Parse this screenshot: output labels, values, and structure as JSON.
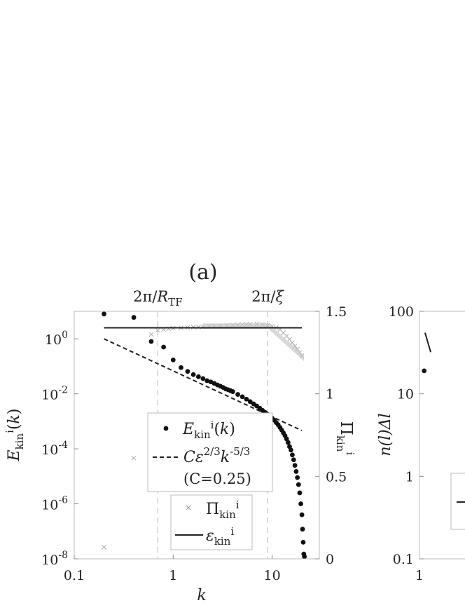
{
  "chart_data": [
    {
      "type": "scatter",
      "panel_label": "(a)",
      "xlabel": "k",
      "ylabel": "E_kin^i(k)",
      "ylabel_right": "Π_kin^i",
      "x_scale": "log",
      "y_scale": "log",
      "xlim": [
        0.1,
        30
      ],
      "ylim": [
        1e-08,
        10
      ],
      "ylim_right": [
        0,
        1.5
      ],
      "x_ticks": [
        {
          "value": 0.1,
          "label": "0.1"
        },
        {
          "value": 1,
          "label": "1"
        },
        {
          "value": 10,
          "label": "10"
        }
      ],
      "y_ticks": [
        {
          "value": 1,
          "base": "10",
          "exp": "0"
        },
        {
          "value": 0.01,
          "base": "10",
          "exp": "-2"
        },
        {
          "value": 0.0001,
          "base": "10",
          "exp": "-4"
        },
        {
          "value": 1e-06,
          "base": "10",
          "exp": "-6"
        },
        {
          "value": 1e-08,
          "base": "10",
          "exp": "-8"
        }
      ],
      "y_ticks_right": [
        {
          "value": 1.5,
          "label": "1.5"
        },
        {
          "value": 1,
          "label": "1"
        },
        {
          "value": 0.5,
          "label": "0.5"
        },
        {
          "value": 0,
          "label": "0"
        }
      ],
      "vertical_markers": [
        {
          "x": 0.7,
          "label": "2π/R_TF"
        },
        {
          "x": 9,
          "label": "2π/ξ"
        }
      ],
      "series": [
        {
          "name": "E_kin^i(k)",
          "style": "dots",
          "axis": "left",
          "x": [
            0.2,
            0.4,
            0.6,
            0.8,
            1.0,
            1.2,
            1.4,
            1.6,
            1.8,
            2.0,
            2.2,
            2.4,
            2.6,
            2.8,
            3.0,
            3.2,
            3.4,
            3.6,
            3.8,
            4.0,
            4.5,
            5.0,
            5.5,
            6.0,
            6.5,
            7.0,
            7.5,
            8.0,
            8.5,
            9.0,
            9.5,
            10.0,
            10.5,
            11.0,
            11.5,
            12.0,
            12.5,
            13.0,
            13.5,
            14.0,
            14.5,
            15.0,
            15.5,
            16.0,
            16.5,
            17.0,
            17.5,
            18.0,
            18.5,
            19.0,
            19.5,
            20.0,
            20.3,
            20.6,
            20.9,
            21.2
          ],
          "y": [
            8,
            6,
            0.8,
            0.5,
            0.17,
            0.09,
            0.065,
            0.05,
            0.042,
            0.036,
            0.03,
            0.027,
            0.024,
            0.021,
            0.019,
            0.017,
            0.015,
            0.014,
            0.013,
            0.012,
            0.0095,
            0.0078,
            0.0064,
            0.0052,
            0.0043,
            0.0036,
            0.003,
            0.0025,
            0.0021,
            0.0018,
            0.0015,
            0.0013,
            0.0011,
            0.0009,
            0.00075,
            0.0006,
            0.00048,
            0.00038,
            0.0003,
            0.00023,
            0.00017,
            0.00012,
            9e-05,
            6e-05,
            4e-05,
            2.5e-05,
            1.5e-05,
            9e-06,
            5e-06,
            2.5e-06,
            1e-06,
            4e-07,
            1.2e-07,
            4e-08,
            1.5e-08,
            1.2e-08
          ]
        },
        {
          "name": "Cε^{2/3}k^{-5/3}",
          "note": "(C=0.25)",
          "style": "dashed",
          "axis": "left",
          "x": [
            0.2,
            20
          ],
          "y": [
            1.0,
            0.00046
          ]
        },
        {
          "name": "Π_kin^i",
          "style": "crosses",
          "axis": "right",
          "x": [
            0.2,
            0.4,
            0.6,
            0.7,
            0.8,
            0.9,
            1.0,
            1.2,
            1.4,
            1.6,
            1.8,
            2.0,
            2.3,
            2.6,
            3.0,
            3.5,
            4.0,
            4.5,
            5.0,
            5.5,
            6.0,
            7.0,
            8.0,
            9.0,
            10.0,
            11.0,
            12.0,
            13.0,
            14.0,
            15.0,
            16.0,
            17.0,
            18.0,
            19.0,
            20.0
          ],
          "y": [
            0.07,
            0.61,
            1.36,
            1.385,
            1.39,
            1.395,
            1.398,
            1.4,
            1.402,
            1.404,
            1.405,
            1.406,
            1.408,
            1.41,
            1.412,
            1.414,
            1.416,
            1.418,
            1.42,
            1.421,
            1.422,
            1.423,
            1.42,
            1.415,
            1.41,
            1.4,
            1.39,
            1.37,
            1.35,
            1.33,
            1.31,
            1.29,
            1.27,
            1.25,
            1.23
          ]
        },
        {
          "name": "ε_kin^i",
          "style": "solid",
          "axis": "right",
          "x": [
            0.2,
            20
          ],
          "y": [
            1.4,
            1.4
          ]
        }
      ]
    },
    {
      "type": "scatter",
      "panel_label": "",
      "ylabel": "n(l)Δl",
      "x_scale": "log",
      "y_scale": "log",
      "ylim": [
        0.1,
        100
      ],
      "x_ticks": [
        {
          "value": 1,
          "label": "1"
        }
      ],
      "y_ticks": [
        {
          "value": 100,
          "label": "100"
        },
        {
          "value": 10,
          "label": "10"
        },
        {
          "value": 1,
          "label": "1"
        },
        {
          "value": 0.1,
          "label": "0.1"
        }
      ],
      "series": [
        {
          "style": "dots",
          "x": [
            1.15
          ],
          "y": [
            19
          ]
        },
        {
          "style": "solid",
          "x": [
            1.18,
            1.4
          ],
          "y": [
            55,
            32
          ]
        }
      ]
    }
  ]
}
